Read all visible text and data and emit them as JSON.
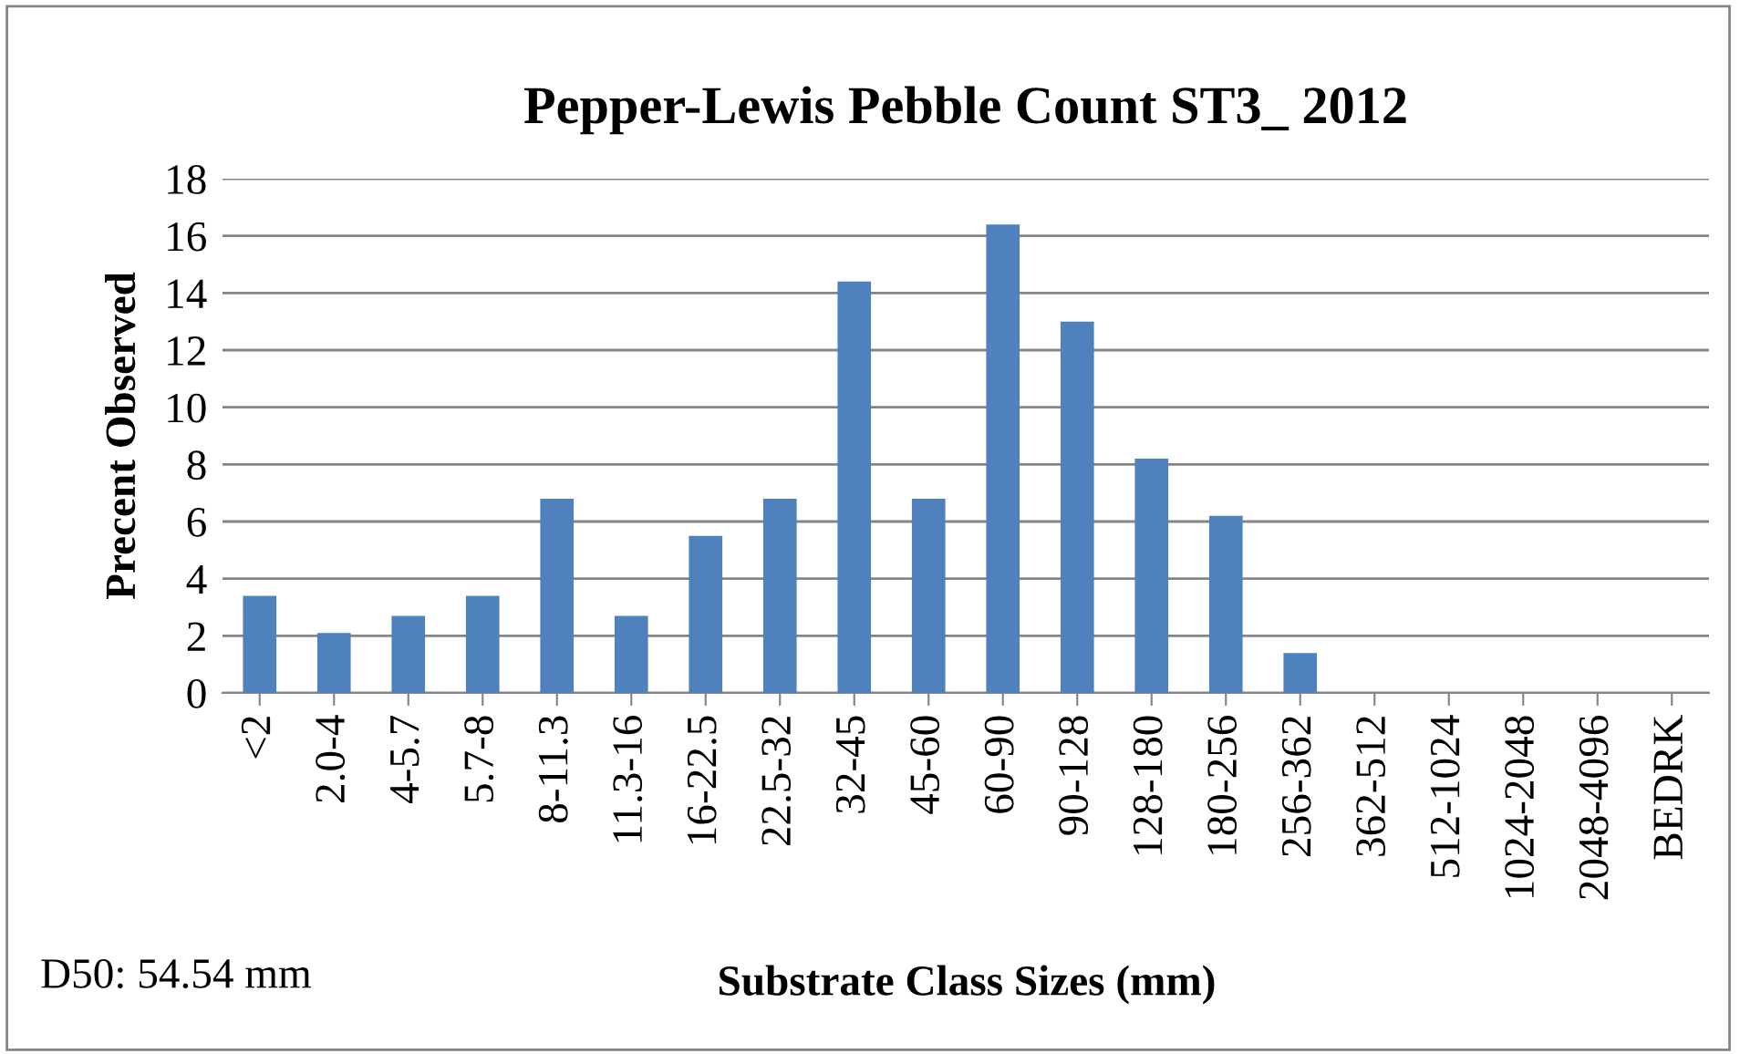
{
  "chart_data": {
    "type": "bar",
    "title": "Pepper-Lewis Pebble Count ST3_ 2012",
    "xlabel": "Substrate Class Sizes (mm)",
    "ylabel": "Precent Observed",
    "categories": [
      "<2",
      "2.0-4",
      "4-5.7",
      "5.7-8",
      "8-11.3",
      "11.3-16",
      "16-22.5",
      "22.5-32",
      "32-45",
      "45-60",
      "60-90",
      "90-128",
      "128-180",
      "180-256",
      "256-362",
      "362-512",
      "512-1024",
      "1024-2048",
      "2048-4096",
      "BEDRK"
    ],
    "values": [
      3.4,
      2.1,
      2.7,
      3.4,
      6.8,
      2.7,
      5.5,
      6.8,
      14.4,
      6.8,
      16.4,
      13.0,
      8.2,
      6.2,
      1.4,
      0,
      0,
      0,
      0,
      0
    ],
    "color": "#4f81bd",
    "ylim": [
      0,
      18
    ],
    "yticks": [
      0,
      2,
      4,
      6,
      8,
      10,
      12,
      14,
      16,
      18
    ],
    "grid": "y",
    "annotations": [
      "D50: 54.54 mm"
    ]
  }
}
